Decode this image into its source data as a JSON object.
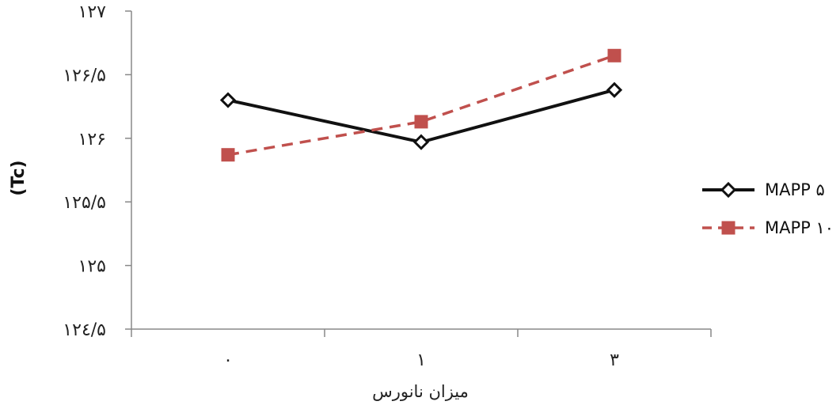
{
  "chart_data": {
    "type": "line",
    "xlabel": "میزان نانورس",
    "ylabel": "(Tc)",
    "categories": [
      "۰",
      "۱",
      "۳"
    ],
    "ylim": [
      124.5,
      127
    ],
    "y_ticks": [
      124.5,
      125,
      125.5,
      126,
      126.5,
      127
    ],
    "y_tick_labels": [
      "۱۲٤/۵",
      "۱۲۵",
      "۱۲۵/۵",
      "۱۲۶",
      "۱۲۶/۵",
      "۱۲۷"
    ],
    "grid": false,
    "legend_position": "right",
    "series": [
      {
        "name": "MAPP ۵",
        "values": [
          126.3,
          125.97,
          126.38
        ],
        "color": "#111111",
        "marker": "diamond",
        "line_style": "solid"
      },
      {
        "name": "MAPP ۱۰",
        "values": [
          125.87,
          126.13,
          126.65
        ],
        "color": "#c0504d",
        "marker": "square",
        "line_style": "dashed"
      }
    ]
  }
}
